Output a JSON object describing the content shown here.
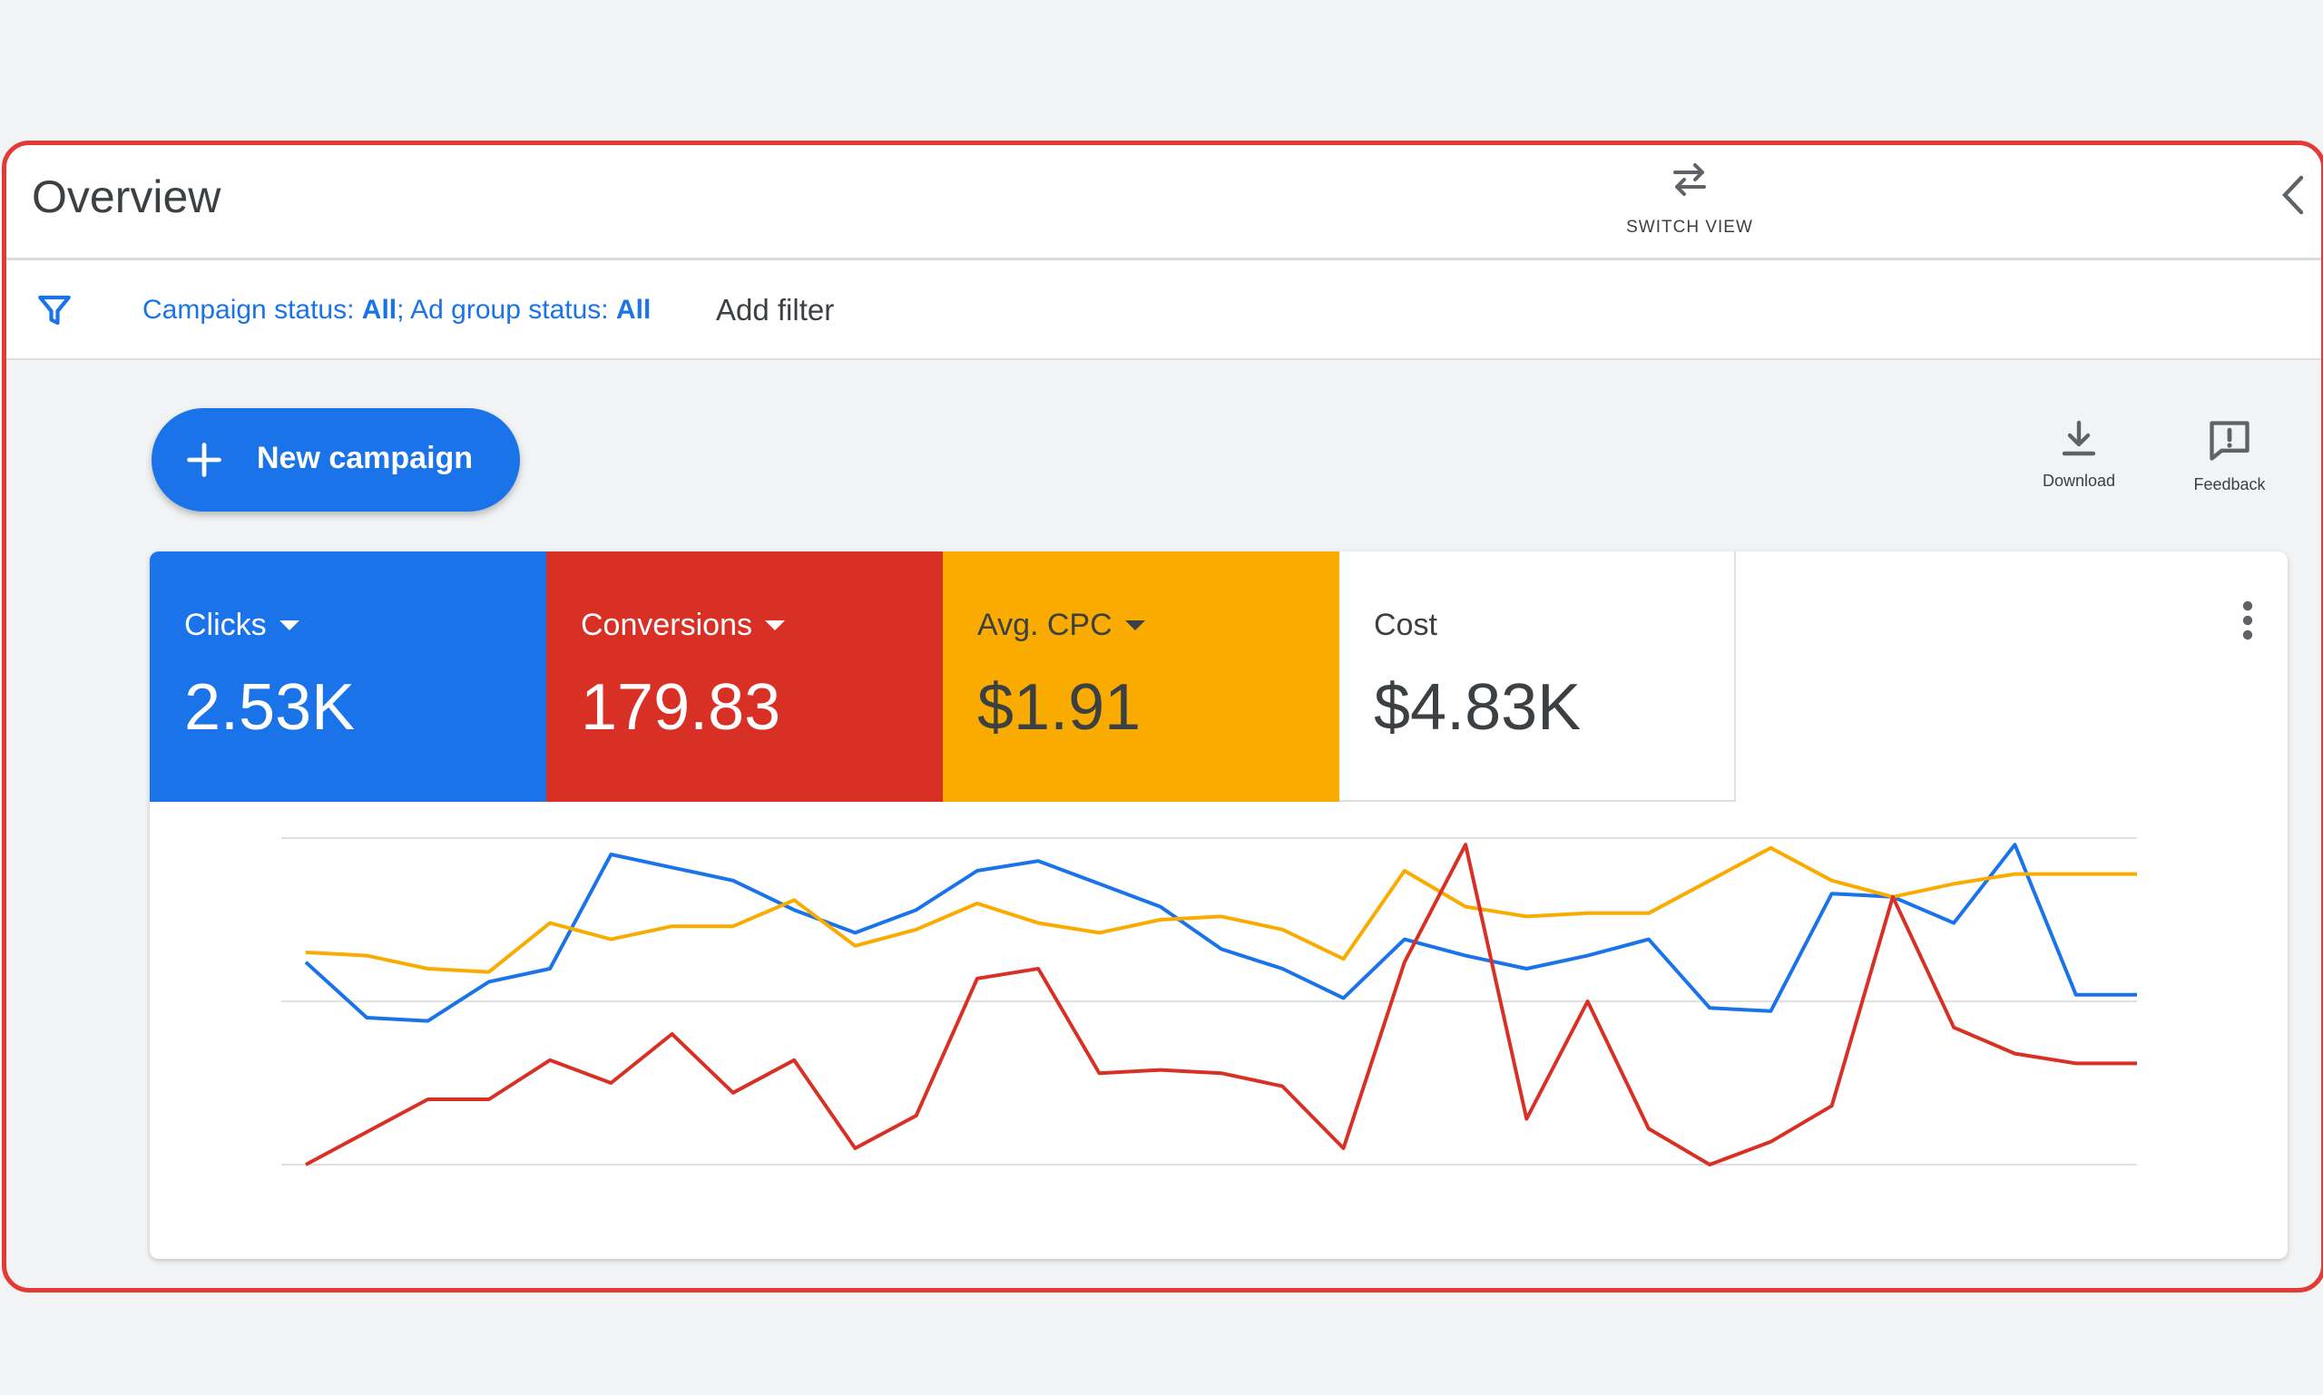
{
  "header": {
    "title": "Overview",
    "switch_view_label": "SWITCH VIEW"
  },
  "filter_bar": {
    "campaign_status_label": "Campaign status: ",
    "campaign_status_value": "All",
    "separator": "; ",
    "ad_group_status_label": "Ad group status: ",
    "ad_group_status_value": "All",
    "add_filter_label": "Add filter"
  },
  "toolbar": {
    "new_campaign_label": "New campaign",
    "download_label": "Download",
    "feedback_label": "Feedback"
  },
  "metrics": [
    {
      "name": "Clicks",
      "value": "2.53K",
      "color": "#1a73e8"
    },
    {
      "name": "Conversions",
      "value": "179.83",
      "color": "#d93025"
    },
    {
      "name": "Avg. CPC",
      "value": "$1.91",
      "color": "#f9ab00"
    },
    {
      "name": "Cost",
      "value": "$4.83K",
      "color": "#ffffff"
    }
  ],
  "colors": {
    "accent": "#1a73e8",
    "frame_border": "#e53935"
  },
  "chart_data": {
    "type": "line",
    "x": [
      1,
      2,
      3,
      4,
      5,
      6,
      7,
      8,
      9,
      10,
      11,
      12,
      13,
      14,
      15,
      16,
      17,
      18,
      19,
      20,
      21,
      22,
      23,
      24,
      25,
      26,
      27,
      28,
      29,
      30,
      31
    ],
    "grid": true,
    "ylim": [
      0,
      100
    ],
    "series": [
      {
        "color": "#1a73e8",
        "values": [
          62,
          45,
          44,
          56,
          60,
          95,
          91,
          87,
          78,
          71,
          78,
          90,
          93,
          86,
          79,
          66,
          60,
          51,
          69,
          64,
          60,
          64,
          69,
          48,
          47,
          83,
          82,
          74,
          98,
          52,
          52
        ]
      },
      {
        "color": "#f9ab00",
        "values": [
          65,
          64,
          60,
          59,
          74,
          69,
          73,
          73,
          81,
          67,
          72,
          80,
          74,
          71,
          75,
          76,
          72,
          63,
          90,
          79,
          76,
          77,
          77,
          87,
          97,
          87,
          82,
          86,
          89,
          89,
          89
        ]
      },
      {
        "color": "#d93025",
        "values": [
          0,
          10,
          20,
          20,
          32,
          25,
          40,
          22,
          32,
          5,
          15,
          57,
          60,
          28,
          29,
          28,
          24,
          5,
          62,
          98,
          14,
          50,
          11,
          0,
          7,
          18,
          82,
          42,
          34,
          31,
          31
        ]
      }
    ]
  }
}
